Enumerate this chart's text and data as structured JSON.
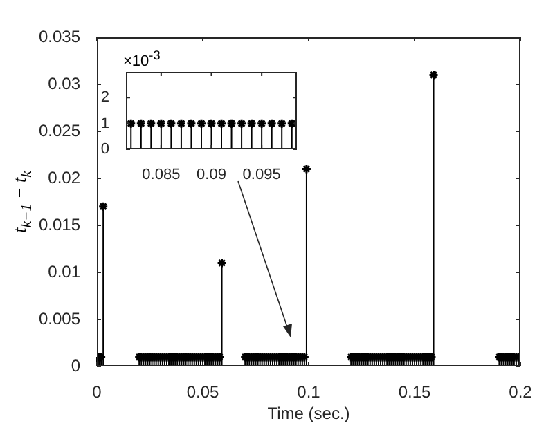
{
  "chart_data": [
    {
      "type": "lollipop",
      "xlabel": "Time (sec.)",
      "ylabel": "t$_{k+1}$ − t$_{k}$",
      "color": "#000000",
      "marker": "cross",
      "x": [
        0,
        0.001,
        0.002,
        0.003,
        0.02,
        0.021,
        0.022,
        0.023,
        0.024,
        0.025,
        0.026,
        0.027,
        0.028,
        0.029,
        0.03,
        0.031,
        0.032,
        0.033,
        0.034,
        0.035,
        0.036,
        0.037,
        0.038,
        0.039,
        0.04,
        0.041,
        0.042,
        0.043,
        0.044,
        0.045,
        0.046,
        0.047,
        0.048,
        0.049,
        0.05,
        0.051,
        0.052,
        0.053,
        0.054,
        0.055,
        0.056,
        0.057,
        0.058,
        0.059,
        0.07,
        0.071,
        0.072,
        0.073,
        0.074,
        0.075,
        0.076,
        0.077,
        0.078,
        0.079,
        0.08,
        0.081,
        0.082,
        0.083,
        0.084,
        0.085,
        0.086,
        0.087,
        0.088,
        0.089,
        0.09,
        0.091,
        0.092,
        0.093,
        0.094,
        0.095,
        0.096,
        0.097,
        0.098,
        0.099,
        0.12,
        0.121,
        0.122,
        0.123,
        0.124,
        0.125,
        0.126,
        0.127,
        0.128,
        0.129,
        0.13,
        0.131,
        0.132,
        0.133,
        0.134,
        0.135,
        0.136,
        0.137,
        0.138,
        0.139,
        0.14,
        0.141,
        0.142,
        0.143,
        0.144,
        0.145,
        0.146,
        0.147,
        0.148,
        0.149,
        0.15,
        0.151,
        0.152,
        0.153,
        0.154,
        0.155,
        0.156,
        0.157,
        0.158,
        0.159,
        0.19,
        0.191,
        0.192,
        0.193,
        0.194,
        0.195,
        0.196,
        0.197,
        0.198,
        0.199
      ],
      "values": [
        0.001,
        0.001,
        0.001,
        0.017,
        0.001,
        0.001,
        0.001,
        0.001,
        0.001,
        0.001,
        0.001,
        0.001,
        0.001,
        0.001,
        0.001,
        0.001,
        0.001,
        0.001,
        0.001,
        0.001,
        0.001,
        0.001,
        0.001,
        0.001,
        0.001,
        0.001,
        0.001,
        0.001,
        0.001,
        0.001,
        0.001,
        0.001,
        0.001,
        0.001,
        0.001,
        0.001,
        0.001,
        0.001,
        0.001,
        0.001,
        0.001,
        0.001,
        0.001,
        0.011,
        0.001,
        0.001,
        0.001,
        0.001,
        0.001,
        0.001,
        0.001,
        0.001,
        0.001,
        0.001,
        0.001,
        0.001,
        0.001,
        0.001,
        0.001,
        0.001,
        0.001,
        0.001,
        0.001,
        0.001,
        0.001,
        0.001,
        0.001,
        0.001,
        0.001,
        0.001,
        0.001,
        0.001,
        0.001,
        0.021,
        0.001,
        0.001,
        0.001,
        0.001,
        0.001,
        0.001,
        0.001,
        0.001,
        0.001,
        0.001,
        0.001,
        0.001,
        0.001,
        0.001,
        0.001,
        0.001,
        0.001,
        0.001,
        0.001,
        0.001,
        0.001,
        0.001,
        0.001,
        0.001,
        0.001,
        0.001,
        0.001,
        0.001,
        0.001,
        0.001,
        0.001,
        0.001,
        0.001,
        0.001,
        0.001,
        0.001,
        0.001,
        0.001,
        0.001,
        0.031,
        0.001,
        0.001,
        0.001,
        0.001,
        0.001,
        0.001,
        0.001,
        0.001,
        0.001,
        0.001
      ],
      "xlim": [
        0,
        0.2
      ],
      "xticks": [
        0,
        0.05,
        0.1,
        0.15,
        0.2
      ],
      "ylim": [
        0,
        0.035
      ],
      "yticks": [
        0,
        0.005,
        0.01,
        0.015,
        0.02,
        0.025,
        0.03,
        0.035
      ]
    },
    {
      "type": "lollipop",
      "color": "#000000",
      "marker": "cross",
      "annotations": [
        "×10$^{-3}$"
      ],
      "x": [
        0.082,
        0.083,
        0.084,
        0.085,
        0.086,
        0.087,
        0.088,
        0.089,
        0.09,
        0.091,
        0.092,
        0.093,
        0.094,
        0.095,
        0.096,
        0.097,
        0.098
      ],
      "values": [
        1,
        1,
        1,
        1,
        1,
        1,
        1,
        1,
        1,
        1,
        1,
        1,
        1,
        1,
        1,
        1,
        1
      ],
      "xlim": [
        0.0815,
        0.0985
      ],
      "xticks": [
        0.085,
        0.09,
        0.095
      ],
      "ylim": [
        0,
        3
      ],
      "yticks": [
        0,
        1,
        2
      ]
    }
  ]
}
